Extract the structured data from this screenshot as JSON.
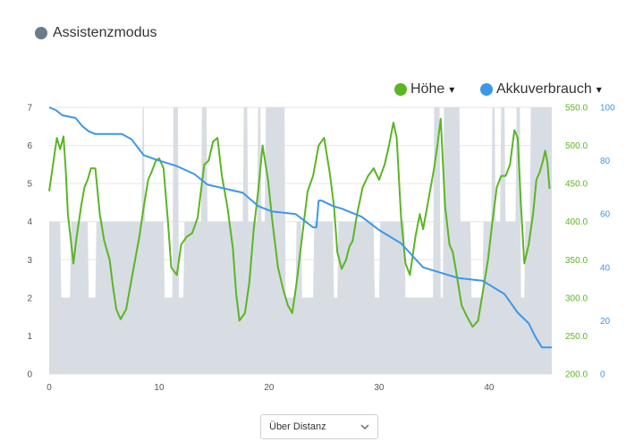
{
  "mode": {
    "label": "Assistenzmodus",
    "color": "#6b7b8c"
  },
  "legend": [
    {
      "name": "Höhe",
      "caret": "▾",
      "color": "#5bb524"
    },
    {
      "name": "Akkuverbrauch",
      "caret": "▾",
      "color": "#3d97e8"
    }
  ],
  "control": {
    "selected": "Über Distanz"
  },
  "chart_data": {
    "type": "area",
    "x_ticks": [
      "0",
      "10",
      "20",
      "30",
      "40"
    ],
    "xlim": [
      0,
      45.7
    ],
    "y_left_ticks": [
      "0",
      "1",
      "2",
      "3",
      "4",
      "5",
      "6",
      "7"
    ],
    "y_left_lim": [
      0,
      7
    ],
    "y_height_ticks": [
      "200.0",
      "250.0",
      "300.0",
      "350.0",
      "400.0",
      "450.0",
      "500.0",
      "550.0"
    ],
    "y_height_lim": [
      200,
      550
    ],
    "y_battery_ticks": [
      "0",
      "20",
      "40",
      "60",
      "80",
      "100"
    ],
    "y_battery_lim": [
      0,
      100
    ],
    "grid": true,
    "series": [
      {
        "name": "Assistenzmodus",
        "axis": "left",
        "color": "#d8dde3",
        "x": [
          0,
          1.0,
          1.1,
          1.9,
          2.0,
          3.5,
          3.6,
          4.2,
          4.3,
          8.4,
          8.5,
          8.6,
          8.7,
          10.4,
          10.5,
          11.2,
          11.3,
          11.7,
          11.8,
          12.2,
          12.3,
          13.8,
          13.9,
          14.3,
          14.4,
          17.6,
          17.7,
          18.0,
          18.1,
          18.9,
          19.0,
          19.2,
          19.3,
          19.6,
          19.7,
          21.4,
          21.5,
          22.4,
          22.5,
          22.9,
          23.0,
          24.0,
          24.1,
          25.8,
          25.9,
          26.2,
          26.3,
          29.5,
          29.6,
          30.0,
          30.1,
          32.3,
          32.4,
          34.9,
          35.0,
          35.5,
          35.6,
          35.8,
          35.9,
          37.3,
          37.4,
          38.3,
          38.4,
          39.4,
          39.5,
          40.2,
          40.3,
          40.5,
          40.6,
          41.0,
          41.1,
          41.4,
          41.5,
          42.4,
          42.5,
          42.8,
          42.9,
          43.2,
          43.3,
          43.7,
          43.8,
          45.7
        ],
        "y": [
          4,
          4,
          2,
          2,
          4,
          4,
          2,
          2,
          4,
          4,
          7,
          7,
          4,
          4,
          2,
          2,
          7,
          7,
          2,
          2,
          4,
          4,
          7,
          7,
          4,
          4,
          7,
          7,
          4,
          4,
          7,
          7,
          4,
          4,
          7,
          7,
          2,
          2,
          4,
          4,
          2,
          2,
          4,
          4,
          2,
          2,
          4,
          4,
          2,
          2,
          4,
          4,
          2,
          2,
          7,
          7,
          2,
          2,
          7,
          7,
          4,
          4,
          2,
          2,
          4,
          4,
          7,
          7,
          4,
          4,
          7,
          7,
          4,
          4,
          7,
          7,
          2,
          2,
          4,
          4,
          7,
          7
        ]
      },
      {
        "name": "Höhe",
        "axis": "height",
        "color": "#5bb524",
        "x": [
          0,
          0.4,
          0.7,
          1.0,
          1.3,
          1.5,
          1.7,
          2.2,
          2.5,
          2.9,
          3.2,
          3.5,
          3.8,
          4.2,
          4.6,
          5.0,
          5.5,
          5.8,
          6.1,
          6.5,
          7.0,
          7.5,
          8.2,
          8.6,
          9.0,
          9.3,
          9.7,
          10.0,
          10.4,
          10.8,
          11.1,
          11.6,
          12.0,
          12.5,
          13.0,
          13.5,
          14.1,
          14.5,
          14.9,
          15.3,
          15.7,
          16.2,
          16.7,
          17.0,
          17.3,
          17.8,
          18.2,
          18.6,
          19.0,
          19.4,
          19.9,
          20.3,
          20.8,
          21.3,
          21.7,
          22.1,
          22.5,
          23.0,
          23.5,
          24.0,
          24.5,
          25.0,
          25.5,
          25.9,
          26.2,
          26.6,
          27.0,
          27.3,
          27.6,
          28.0,
          28.5,
          29.0,
          29.5,
          30.0,
          30.5,
          30.9,
          31.3,
          31.6,
          32.0,
          32.4,
          32.8,
          33.3,
          33.7,
          34.0,
          34.5,
          35.0,
          35.3,
          35.6,
          36.0,
          36.4,
          36.7,
          37.0,
          37.5,
          38.0,
          38.5,
          39.0,
          39.4,
          39.9,
          40.3,
          40.7,
          41.1,
          41.5,
          41.9,
          42.3,
          42.6,
          42.9,
          43.2,
          43.6,
          44.0,
          44.3,
          44.6,
          44.9,
          45.1,
          45.3,
          45.5
        ],
        "y": [
          440,
          480,
          510,
          495,
          512,
          470,
          410,
          345,
          380,
          420,
          445,
          455,
          470,
          470,
          410,
          375,
          350,
          315,
          285,
          272,
          285,
          325,
          380,
          420,
          455,
          465,
          480,
          483,
          470,
          400,
          340,
          330,
          370,
          380,
          385,
          405,
          475,
          480,
          505,
          510,
          460,
          420,
          365,
          305,
          270,
          280,
          320,
          390,
          440,
          500,
          455,
          400,
          340,
          310,
          290,
          280,
          320,
          380,
          440,
          460,
          500,
          510,
          465,
          420,
          360,
          338,
          350,
          367,
          375,
          410,
          445,
          460,
          470,
          455,
          475,
          500,
          530,
          510,
          405,
          345,
          330,
          380,
          410,
          390,
          430,
          470,
          500,
          535,
          420,
          370,
          360,
          335,
          290,
          275,
          262,
          270,
          305,
          350,
          400,
          445,
          460,
          460,
          475,
          520,
          510,
          420,
          345,
          370,
          410,
          455,
          465,
          480,
          493,
          478,
          443
        ]
      },
      {
        "name": "Akkuverbrauch",
        "axis": "battery",
        "color": "#3d97e8",
        "x": [
          0,
          0.6,
          1.2,
          2.4,
          3.0,
          3.6,
          4.2,
          6.6,
          7.5,
          8.6,
          10.0,
          11.6,
          13.2,
          14.4,
          17.6,
          19.0,
          20.2,
          22.4,
          24.0,
          24.3,
          24.5,
          24.8,
          25.8,
          26.6,
          28.4,
          30.0,
          32.0,
          34.0,
          35.6,
          37.2,
          39.4,
          41.4,
          42.6,
          43.6,
          44.2,
          44.8,
          45.7
        ],
        "y": [
          100,
          99,
          97,
          96,
          93,
          91,
          90,
          90,
          88,
          82,
          80,
          78,
          75,
          71,
          68,
          63,
          61,
          60,
          55,
          55,
          65,
          65,
          63,
          62,
          59,
          54,
          49,
          40,
          38,
          36,
          35,
          30,
          23,
          19,
          14,
          10,
          10
        ]
      }
    ]
  }
}
